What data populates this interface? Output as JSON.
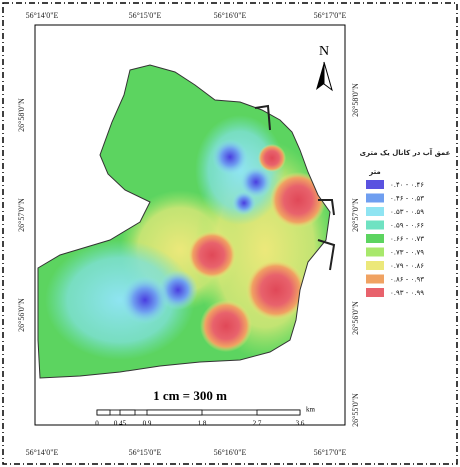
{
  "coords": {
    "top": [
      "56°14'0\"E",
      "56°15'0\"E",
      "56°16'0\"E",
      "56°17'0\"E"
    ],
    "bottom": [
      "56°14'0\"E",
      "56°15'0\"E",
      "56°16'0\"E",
      "56°17'0\"E"
    ],
    "left": [
      "26°58'0\"N",
      "26°57'0\"N",
      "26°56'0\"N"
    ],
    "right": [
      "26°58'0\"N",
      "26°57'0\"N",
      "26°56'0\"N",
      "26°55'0\"N"
    ]
  },
  "north": "N",
  "legend": {
    "title": "عمق آب در کانال یک متری",
    "unit": "متر",
    "items": [
      {
        "label": "۰.۴۰ - ۰.۴۶",
        "color": "#5a52e0"
      },
      {
        "label": "۰.۴۶ - ۰.۵۳",
        "color": "#6f9ef0"
      },
      {
        "label": "۰.۵۳ - ۰.۵۹",
        "color": "#8fe4f2"
      },
      {
        "label": "۰.۵۹ - ۰.۶۶",
        "color": "#6fe2c2"
      },
      {
        "label": "۰.۶۶ - ۰.۷۳",
        "color": "#5cd460"
      },
      {
        "label": "۰.۷۳ - ۰.۷۹",
        "color": "#a8e86c"
      },
      {
        "label": "۰.۷۹ - ۰.۸۶",
        "color": "#ece87a"
      },
      {
        "label": "۰.۸۶ - ۰.۹۳",
        "color": "#f0a262"
      },
      {
        "label": "۰.۹۳ - ۰.۹۹",
        "color": "#e8626c"
      }
    ]
  },
  "scale": {
    "text": "1 cm = 300 m",
    "ticks": [
      "0",
      "0.45",
      "0.9",
      "1.8",
      "2.7",
      "3.6"
    ],
    "unit": "km"
  }
}
